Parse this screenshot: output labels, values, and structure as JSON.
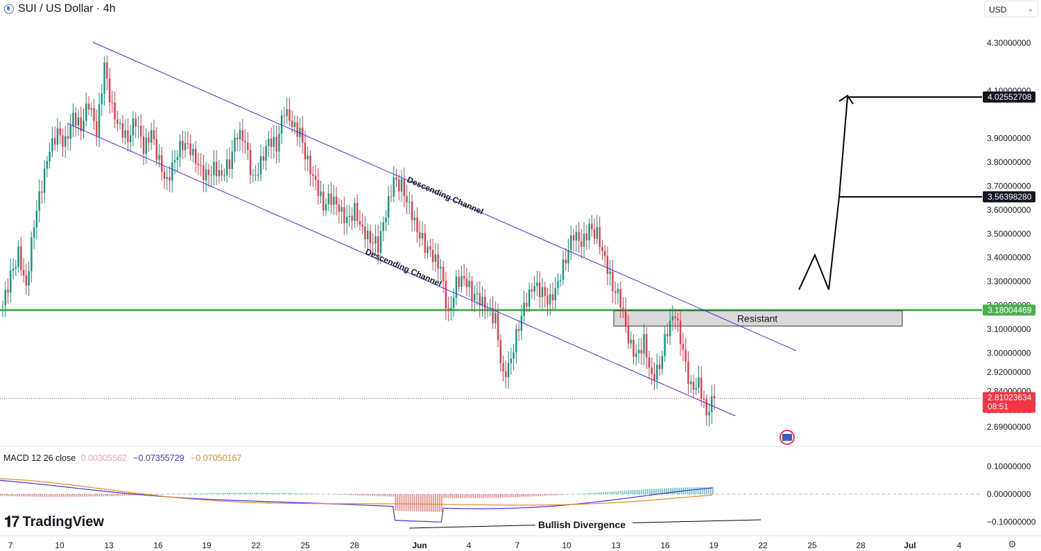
{
  "header": {
    "title": "SUI / US Dollar · 4h"
  },
  "currency": {
    "label": "USD"
  },
  "price_axis": {
    "ticks": [
      "4.30000000",
      "4.10000000",
      "3.90000000",
      "3.80000000",
      "3.70000000",
      "3.60000000",
      "3.50000000",
      "3.40000000",
      "3.30000000",
      "3.20000000",
      "3.10000000",
      "3.00000000",
      "2.92000000",
      "2.84000000",
      "2.76000000",
      "2.69000000"
    ],
    "tick_values": [
      4.3,
      4.1,
      3.9,
      3.8,
      3.7,
      3.6,
      3.5,
      3.4,
      3.3,
      3.2,
      3.1,
      3.0,
      2.92,
      2.84,
      2.76,
      2.69
    ],
    "target_high": {
      "label": "4.02552708",
      "value": 4.02552708
    },
    "target_mid": {
      "label": "3.56398280",
      "value": 3.5639828
    },
    "resistance_level": {
      "label": "3.18004469",
      "value": 3.18004469
    },
    "last_price": {
      "label": "2.81023634",
      "value": 2.81023634,
      "countdown": "08:51"
    }
  },
  "time_axis": {
    "labels": [
      "7",
      "10",
      "13",
      "16",
      "19",
      "22",
      "25",
      "28",
      "Jun",
      "4",
      "7",
      "10",
      "13",
      "16",
      "19",
      "22",
      "25",
      "28",
      "Jul",
      "4"
    ]
  },
  "annotations": {
    "channel_upper": "Descending Channel",
    "channel_lower": "Descending Channel",
    "resistance_box": "Resistant",
    "divergence": "Bullish Divergence"
  },
  "macd": {
    "label": "MACD 12 26 close",
    "histogram_value": "0.00305562",
    "macd_value": "−0.07355729",
    "signal_value": "−0.07050167",
    "axis_ticks": [
      "0.10000000",
      "0.00000000",
      "−0.10000000"
    ],
    "axis_values": [
      0.1,
      0.0,
      -0.1
    ]
  },
  "branding": {
    "name": "TradingView"
  },
  "colors": {
    "up": "#089981",
    "down": "#f23645",
    "resistance": "#4caf50",
    "channel": "#3f32d9",
    "macd": "#3f32d9",
    "signal": "#e8871e"
  },
  "chart_data": {
    "type": "candlestick",
    "title": "SUI / US Dollar · 4h",
    "ylim": [
      2.66,
      4.36
    ],
    "candles_close": [
      3.2,
      3.32,
      3.42,
      3.28,
      3.55,
      3.7,
      3.85,
      3.92,
      3.88,
      4.0,
      3.95,
      4.05,
      3.92,
      4.2,
      4.02,
      3.95,
      3.9,
      3.98,
      3.85,
      3.92,
      3.8,
      3.72,
      3.82,
      3.88,
      3.85,
      3.78,
      3.74,
      3.78,
      3.75,
      3.8,
      3.92,
      3.88,
      3.72,
      3.8,
      3.9,
      3.87,
      4.02,
      3.95,
      3.92,
      3.8,
      3.72,
      3.62,
      3.65,
      3.6,
      3.55,
      3.6,
      3.52,
      3.48,
      3.45,
      3.58,
      3.72,
      3.7,
      3.62,
      3.52,
      3.45,
      3.4,
      3.35,
      3.15,
      3.3,
      3.32,
      3.25,
      3.22,
      3.18,
      3.14,
      2.9,
      2.98,
      3.12,
      3.22,
      3.28,
      3.25,
      3.22,
      3.3,
      3.4,
      3.5,
      3.45,
      3.52,
      3.5,
      3.4,
      3.28,
      3.22,
      3.05,
      2.98,
      3.05,
      2.9,
      2.95,
      3.1,
      3.16,
      3.0,
      2.85,
      2.88,
      2.75,
      2.81
    ],
    "key_levels": {
      "resistance": 3.18004469,
      "target_1": 3.5639828,
      "target_2": 4.02552708,
      "last": 2.81023634
    }
  }
}
